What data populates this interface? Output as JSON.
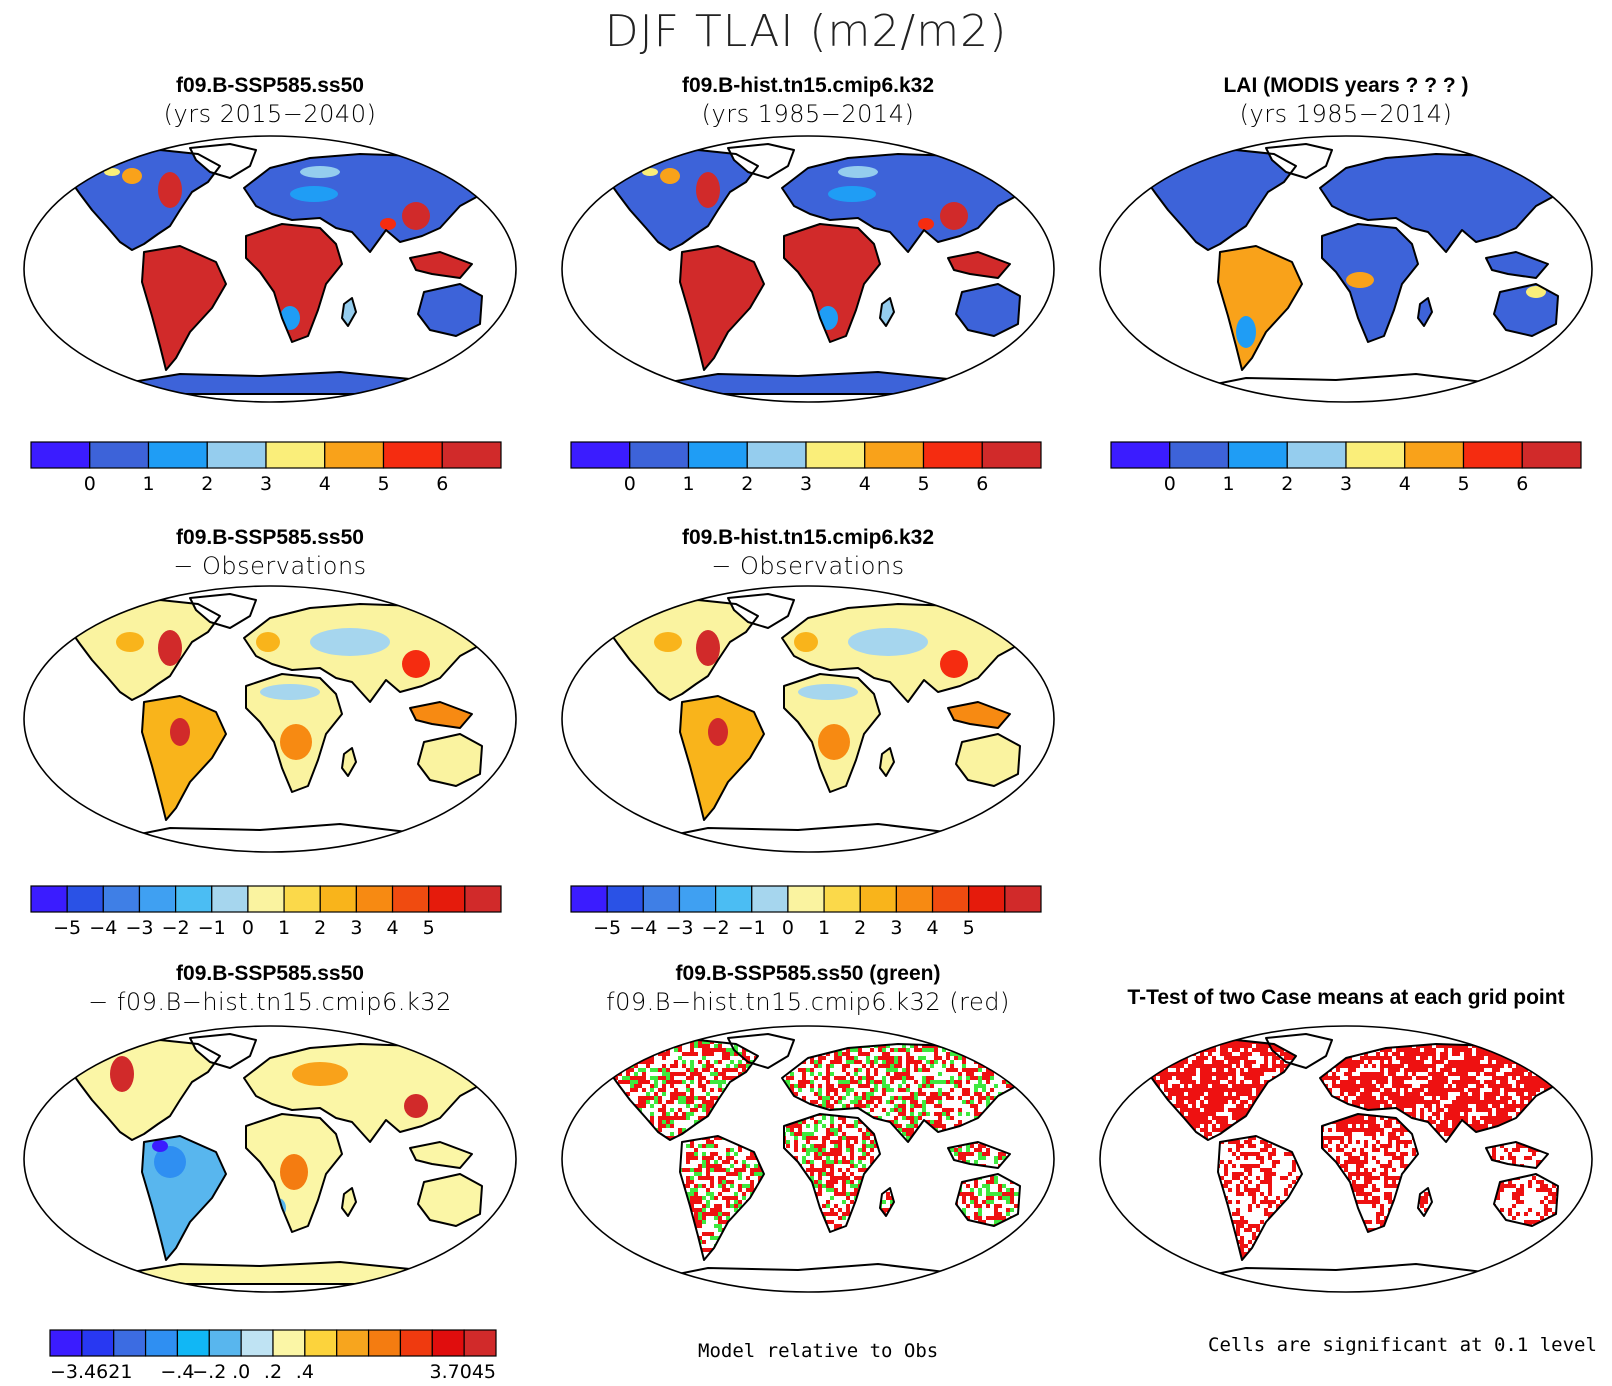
{
  "title": "DJF TLAI (m2/m2)",
  "colors": {
    "land_outline": "#000000",
    "ocean": "#ffffff",
    "abs_palette": [
      "#3b1cff",
      "#3d63d9",
      "#1f9df5",
      "#95cdee",
      "#faee7a",
      "#f9a21a",
      "#f52c10",
      "#d12a2a"
    ],
    "diff_palette": [
      "#3b1cff",
      "#2a52e6",
      "#3f7fe6",
      "#3fa0f2",
      "#4bbdf3",
      "#a6d6ee",
      "#faf3a0",
      "#fbd94a",
      "#f9b41b",
      "#f78a12",
      "#f04b10",
      "#e51b0c",
      "#d12a2a"
    ],
    "case_diff_palette": [
      "#3b1cff",
      "#2838f2",
      "#3c6ce2",
      "#2f8ff2",
      "#11b7f5",
      "#58b6ee",
      "#bfe3f3",
      "#fbf6a6",
      "#fcd33c",
      "#f7a51e",
      "#f47c11",
      "#ef3a0f",
      "#e00d0d",
      "#d12a2a"
    ],
    "ttest_green": "#3ee83e",
    "ttest_red": "#ee1111"
  },
  "panels": [
    {
      "id": "p1",
      "title": "f09.B-SSP585.ss50",
      "subtitle": "(yrs 2015−2040)",
      "fill": "abs",
      "colorbar": [
        "0",
        "1",
        "2",
        "3",
        "4",
        "5",
        "6"
      ]
    },
    {
      "id": "p2",
      "title": "f09.B-hist.tn15.cmip6.k32",
      "subtitle": "(yrs 1985−2014)",
      "fill": "abs",
      "colorbar": [
        "0",
        "1",
        "2",
        "3",
        "4",
        "5",
        "6"
      ]
    },
    {
      "id": "p3",
      "title": "LAI (MODIS years ? ? ? )",
      "subtitle": "(yrs 1985−2014)",
      "fill": "obs",
      "colorbar": [
        "0",
        "1",
        "2",
        "3",
        "4",
        "5",
        "6"
      ]
    },
    {
      "id": "p4",
      "title": "f09.B-SSP585.ss50",
      "subtitle": "− Observations",
      "fill": "diff",
      "colorbar": [
        "−5",
        "−4",
        "−3",
        "−2",
        "−1",
        "0",
        "1",
        "2",
        "3",
        "4",
        "5"
      ]
    },
    {
      "id": "p5",
      "title": "f09.B-hist.tn15.cmip6.k32",
      "subtitle": "− Observations",
      "fill": "diff",
      "colorbar": [
        "−5",
        "−4",
        "−3",
        "−2",
        "−1",
        "0",
        "1",
        "2",
        "3",
        "4",
        "5"
      ]
    },
    {
      "id": "p6",
      "title": "f09.B-SSP585.ss50",
      "subtitle": "− f09.B−hist.tn15.cmip6.k32",
      "fill": "casediff",
      "colorbar": [
        "−3.4621",
        "−.4",
        "−.2",
        ".0",
        ".2",
        ".4",
        "3.7045"
      ]
    },
    {
      "id": "p7",
      "title": "f09.B-SSP585.ss50 (green)",
      "subtitle": "f09.B−hist.tn15.cmip6.k32 (red)",
      "fill": "compare",
      "colorbar": []
    },
    {
      "id": "p8",
      "title": "T-Test of two Case means at each grid point",
      "subtitle": "",
      "fill": "ttest",
      "colorbar": []
    }
  ],
  "notes": {
    "model_relative": "Model relative to Obs",
    "significance": "Cells are significant at 0.1 level"
  }
}
